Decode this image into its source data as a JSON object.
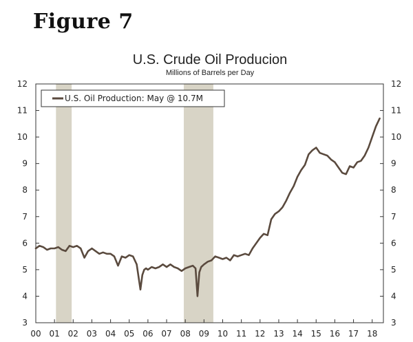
{
  "figure_label": "Figure 7",
  "colors": {
    "line": "#5a4a3e",
    "recession": "#d8d4c6",
    "axis": "#333333"
  },
  "chart_data": {
    "type": "line",
    "title": "U.S. Crude Oil Producion",
    "subtitle": "Millions of  Barrels per Day",
    "xlabel": "",
    "ylabel": "",
    "ylim": [
      3,
      12
    ],
    "xlim": [
      2000.0,
      2018.6
    ],
    "y_ticks_left": [
      12,
      11,
      10,
      9,
      8,
      7,
      6,
      5,
      4,
      3
    ],
    "y_ticks_right": [
      12,
      11,
      10,
      9,
      8,
      7,
      6,
      5,
      4,
      3
    ],
    "x_tick_labels": [
      "00",
      "01",
      "02",
      "03",
      "04",
      "05",
      "06",
      "07",
      "08",
      "09",
      "10",
      "11",
      "12",
      "13",
      "14",
      "15",
      "16",
      "17",
      "18"
    ],
    "grid": false,
    "legend": {
      "placement": "top-left",
      "entries": [
        "U.S. Oil Production: May @ 10.7M"
      ]
    },
    "recessions": [
      [
        2001.08,
        2001.92
      ],
      [
        2007.92,
        2009.5
      ]
    ],
    "series": [
      {
        "name": "U.S. Oil Production: May @ 10.7M",
        "x": [
          2000.0,
          2000.2,
          2000.4,
          2000.6,
          2000.8,
          2001.0,
          2001.2,
          2001.4,
          2001.6,
          2001.8,
          2002.0,
          2002.2,
          2002.4,
          2002.6,
          2002.8,
          2003.0,
          2003.2,
          2003.4,
          2003.6,
          2003.8,
          2004.0,
          2004.2,
          2004.4,
          2004.6,
          2004.8,
          2005.0,
          2005.2,
          2005.4,
          2005.6,
          2005.7,
          2005.8,
          2005.9,
          2006.0,
          2006.2,
          2006.4,
          2006.6,
          2006.8,
          2007.0,
          2007.2,
          2007.4,
          2007.6,
          2007.8,
          2008.0,
          2008.2,
          2008.4,
          2008.55,
          2008.65,
          2008.75,
          2008.85,
          2009.0,
          2009.2,
          2009.4,
          2009.6,
          2009.8,
          2010.0,
          2010.2,
          2010.4,
          2010.6,
          2010.8,
          2011.0,
          2011.2,
          2011.4,
          2011.6,
          2011.8,
          2012.0,
          2012.2,
          2012.4,
          2012.6,
          2012.8,
          2013.0,
          2013.2,
          2013.4,
          2013.6,
          2013.8,
          2014.0,
          2014.2,
          2014.4,
          2014.6,
          2014.8,
          2015.0,
          2015.2,
          2015.4,
          2015.6,
          2015.8,
          2016.0,
          2016.2,
          2016.4,
          2016.6,
          2016.8,
          2017.0,
          2017.2,
          2017.4,
          2017.6,
          2017.8,
          2018.0,
          2018.2,
          2018.4
        ],
        "values": [
          5.8,
          5.9,
          5.85,
          5.75,
          5.8,
          5.8,
          5.85,
          5.75,
          5.7,
          5.9,
          5.85,
          5.9,
          5.8,
          5.45,
          5.7,
          5.8,
          5.7,
          5.6,
          5.65,
          5.6,
          5.6,
          5.5,
          5.15,
          5.5,
          5.45,
          5.55,
          5.5,
          5.2,
          4.25,
          4.8,
          5.0,
          5.05,
          5.0,
          5.1,
          5.05,
          5.1,
          5.2,
          5.1,
          5.2,
          5.1,
          5.05,
          4.95,
          5.05,
          5.1,
          5.15,
          5.05,
          4.0,
          4.9,
          5.1,
          5.2,
          5.3,
          5.35,
          5.5,
          5.45,
          5.4,
          5.45,
          5.35,
          5.55,
          5.5,
          5.55,
          5.6,
          5.55,
          5.8,
          6.0,
          6.2,
          6.35,
          6.3,
          6.9,
          7.1,
          7.2,
          7.35,
          7.6,
          7.9,
          8.15,
          8.5,
          8.75,
          8.95,
          9.35,
          9.5,
          9.6,
          9.4,
          9.35,
          9.3,
          9.15,
          9.05,
          8.85,
          8.65,
          8.6,
          8.9,
          8.85,
          9.05,
          9.1,
          9.3,
          9.6,
          10.0,
          10.4,
          10.7
        ]
      }
    ]
  }
}
